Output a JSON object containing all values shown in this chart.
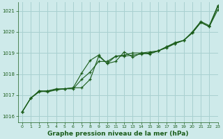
{
  "xlabel": "Graphe pression niveau de la mer (hPa)",
  "background_color": "#ceeaea",
  "grid_color": "#a8d0d0",
  "line_color": "#1a5c1a",
  "xlim": [
    -0.5,
    23
  ],
  "ylim": [
    1015.7,
    1021.4
  ],
  "yticks": [
    1016,
    1017,
    1018,
    1019,
    1020,
    1021
  ],
  "xticks": [
    0,
    1,
    2,
    3,
    4,
    5,
    6,
    7,
    8,
    9,
    10,
    11,
    12,
    13,
    14,
    15,
    16,
    17,
    18,
    19,
    20,
    21,
    22,
    23
  ],
  "series1": [
    1016.2,
    1016.85,
    1017.2,
    1017.2,
    1017.3,
    1017.3,
    1017.35,
    1017.35,
    1017.75,
    1018.85,
    1018.5,
    1018.85,
    1018.9,
    1019.0,
    1019.0,
    1019.05,
    1019.1,
    1019.3,
    1019.5,
    1019.6,
    1020.0,
    1020.5,
    1020.3,
    1021.25
  ],
  "series2": [
    1016.2,
    1016.85,
    1017.15,
    1017.2,
    1017.25,
    1017.3,
    1017.3,
    1017.75,
    1018.1,
    1018.6,
    1018.6,
    1018.85,
    1018.85,
    1018.9,
    1018.95,
    1019.0,
    1019.1,
    1019.3,
    1019.45,
    1019.6,
    1019.95,
    1020.45,
    1020.25,
    1021.05
  ],
  "series3": [
    1016.2,
    1016.85,
    1017.2,
    1017.15,
    1017.25,
    1017.3,
    1017.35,
    1018.05,
    1018.65,
    1018.9,
    1018.5,
    1018.6,
    1019.05,
    1018.8,
    1019.0,
    1018.95,
    1019.1,
    1019.25,
    1019.45,
    1019.6,
    1019.95,
    1020.45,
    1020.25,
    1021.2
  ]
}
